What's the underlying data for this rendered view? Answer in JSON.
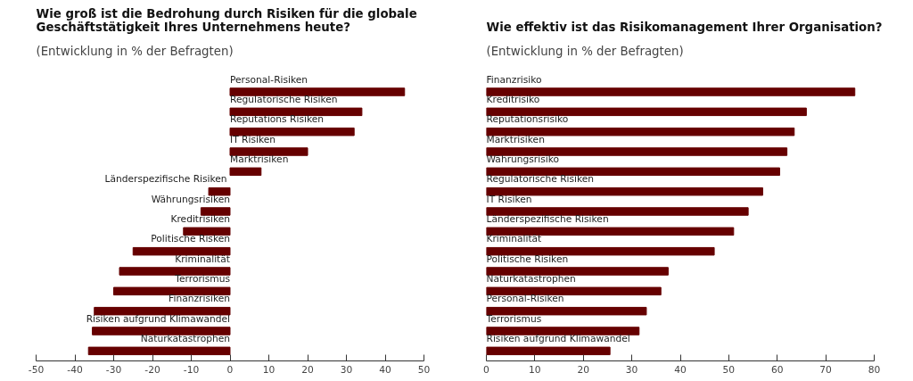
{
  "chart_data": [
    {
      "type": "bar",
      "orientation": "horizontal",
      "title": "Wie groß ist die Bedrohung durch Risiken für die globale Geschäftstätigkeit Ihres Unternehmens heute?",
      "subtitle": "(Entwicklung in % der Befragten)",
      "categories": [
        "Personal-Risiken",
        "Regulatorische Risiken",
        "Reputations Risiken",
        "IT Risiken",
        "Marktrisiken",
        "Länderspezifische  Risiken",
        "Währungsrisiken",
        "Kreditrisiken",
        "Politische Risken",
        "Kriminalität",
        "Terrorismus",
        "Finanzrisiken",
        "Risiken aufgrund Klimawandel",
        "Naturkatastrophen"
      ],
      "values": [
        45,
        34,
        32,
        20,
        8,
        -5.5,
        -7.5,
        -12,
        -25,
        -28.5,
        -30,
        -35,
        -35.5,
        -36.5
      ],
      "color": "#660000",
      "xlim": [
        -50,
        50
      ],
      "xticks": [
        -50,
        -40,
        -30,
        -20,
        -10,
        0,
        10,
        20,
        30,
        40,
        50
      ],
      "grid": false
    },
    {
      "type": "bar",
      "orientation": "horizontal",
      "title": "Wie effektiv ist das Risikomanagement Ihrer Organisation?",
      "subtitle": "(Entwicklung in % der Befragten)",
      "categories": [
        "Finanzrisiko",
        "Kreditrisiko",
        "Reputationsrisiko",
        "Marktrisiken",
        "Währungsrisiko",
        "Regulatorische Risiken",
        "IT Risiken",
        "Länderspezifische Risiken",
        "Kriminalität",
        "Politische Risiken",
        "Naturkatastrophen",
        "Personal-Risiken",
        "Terrorismus",
        "Risiken aufgrund Klimawandel"
      ],
      "values": [
        76,
        66,
        63.5,
        62,
        60.5,
        57,
        54,
        51,
        47,
        37.5,
        36,
        33,
        31.5,
        25.5
      ],
      "color": "#660000",
      "xlim": [
        0,
        80
      ],
      "xticks": [
        0,
        10,
        20,
        30,
        40,
        50,
        60,
        70,
        80
      ],
      "grid": false
    }
  ]
}
